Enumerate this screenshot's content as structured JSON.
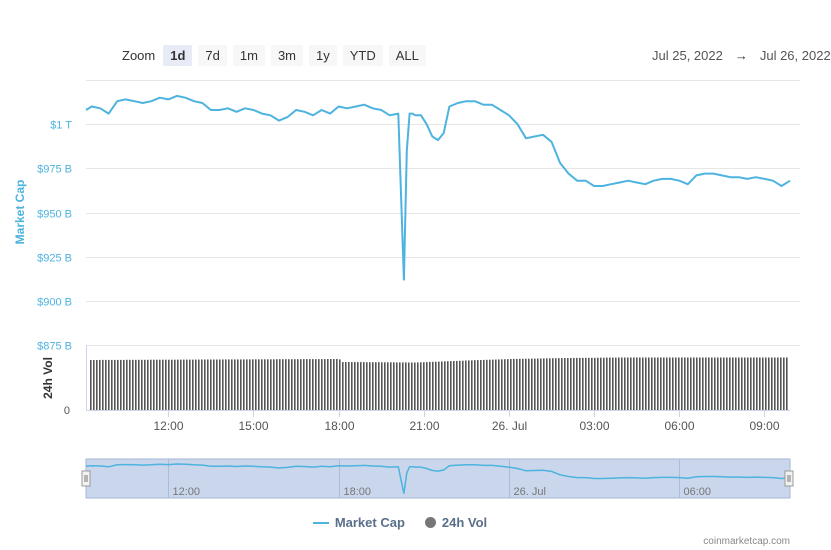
{
  "zoom": {
    "label": "Zoom",
    "buttons": [
      "1d",
      "7d",
      "1m",
      "3m",
      "1y",
      "YTD",
      "ALL"
    ],
    "active": "1d"
  },
  "range": {
    "from": "Jul 25, 2022",
    "arrow": "→",
    "to": "Jul 26, 2022"
  },
  "colors": {
    "market_cap": "#4db3df",
    "volume": "#777777",
    "navigator_fill": "#c9d6ec"
  },
  "legend": {
    "market_cap": "Market Cap",
    "volume": "24h Vol"
  },
  "credit": "coinmarketcap.com",
  "chart_data": {
    "type": "line",
    "y_axis_title": "Market Cap",
    "y_ticks": [
      {
        "value": 875,
        "label": "$875 B"
      },
      {
        "value": 900,
        "label": "$900 B"
      },
      {
        "value": 925,
        "label": "$925 B"
      },
      {
        "value": 950,
        "label": "$950 B"
      },
      {
        "value": 975,
        "label": "$975 B"
      },
      {
        "value": 1000,
        "label": "$1 T"
      }
    ],
    "ylim": [
      875,
      1025
    ],
    "x_ticks": [
      {
        "hour": 12,
        "label": "12:00"
      },
      {
        "hour": 15,
        "label": "15:00"
      },
      {
        "hour": 18,
        "label": "18:00"
      },
      {
        "hour": 21,
        "label": "21:00"
      },
      {
        "hour": 24,
        "label": "26. Jul"
      },
      {
        "hour": 27,
        "label": "03:00"
      },
      {
        "hour": 30,
        "label": "06:00"
      },
      {
        "hour": 33,
        "label": "09:00"
      }
    ],
    "navigator_ticks": [
      {
        "hour": 12,
        "label": "12:00"
      },
      {
        "hour": 18,
        "label": "18:00"
      },
      {
        "hour": 24,
        "label": "26. Jul"
      },
      {
        "hour": 30,
        "label": "06:00"
      }
    ],
    "xlim": [
      9.1,
      33.9
    ],
    "series": [
      {
        "name": "Market Cap",
        "x": [
          9.1,
          9.3,
          9.6,
          9.9,
          10.2,
          10.5,
          10.8,
          11.1,
          11.4,
          11.7,
          12.0,
          12.3,
          12.6,
          12.9,
          13.2,
          13.5,
          13.8,
          14.1,
          14.4,
          14.7,
          15.0,
          15.3,
          15.6,
          15.9,
          16.2,
          16.5,
          16.8,
          17.1,
          17.4,
          17.7,
          18.0,
          18.3,
          18.6,
          18.9,
          19.2,
          19.5,
          19.8,
          20.1,
          20.3,
          20.4,
          20.5,
          20.6,
          20.7,
          20.9,
          21.1,
          21.3,
          21.5,
          21.7,
          21.9,
          22.2,
          22.5,
          22.8,
          23.1,
          23.4,
          23.7,
          24.0,
          24.3,
          24.6,
          24.9,
          25.2,
          25.5,
          25.8,
          26.1,
          26.4,
          26.7,
          27.0,
          27.3,
          27.6,
          27.9,
          28.2,
          28.5,
          28.8,
          29.1,
          29.4,
          29.7,
          30.0,
          30.3,
          30.6,
          30.9,
          31.2,
          31.5,
          31.8,
          32.1,
          32.4,
          32.7,
          33.0,
          33.3,
          33.6,
          33.9
        ],
        "values": [
          1008,
          1010,
          1009,
          1006,
          1013,
          1014,
          1013,
          1012,
          1013,
          1015,
          1014,
          1016,
          1015,
          1013,
          1012,
          1008,
          1008,
          1009,
          1007,
          1009,
          1008,
          1006,
          1005,
          1002,
          1004,
          1008,
          1007,
          1005,
          1008,
          1006,
          1010,
          1009,
          1010,
          1011,
          1009,
          1008,
          1005,
          1006,
          912,
          985,
          1006,
          1006,
          1005,
          1005,
          1000,
          993,
          991,
          995,
          1010,
          1012,
          1013,
          1013,
          1011,
          1011,
          1008,
          1005,
          1000,
          992,
          993,
          994,
          990,
          978,
          972,
          968,
          968,
          965,
          965,
          966,
          967,
          968,
          967,
          966,
          968,
          969,
          969,
          968,
          966,
          971,
          972,
          972,
          971,
          970,
          970,
          969,
          970,
          969,
          968,
          965,
          968
        ]
      },
      {
        "name": "24h Vol",
        "x": [
          9.1,
          18.0,
          18.1,
          20.7,
          22.0,
          24.0,
          26.0,
          28.0,
          30.0,
          33.9
        ],
        "values": [
          100,
          102,
          96,
          95,
          98,
          102,
          104,
          105,
          105,
          105
        ]
      }
    ],
    "volume_ylim": [
      0,
      130
    ],
    "volume_zero_label": "0",
    "volume_axis_title": "24h Vol"
  }
}
